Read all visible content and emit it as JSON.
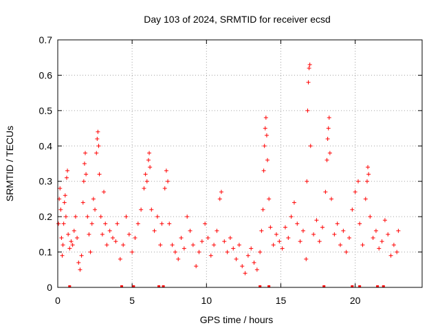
{
  "chart_data": {
    "type": "scatter",
    "title": "Day 103 of 2024, SRMTID for receiver ecsd",
    "xlabel": "GPS time / hours",
    "ylabel": "SRMTID / TECUs",
    "xlim": [
      0,
      24.5
    ],
    "ylim": [
      0,
      0.7
    ],
    "xticks": [
      0,
      5,
      10,
      15,
      20
    ],
    "yticks": [
      0,
      0.1,
      0.2,
      0.3,
      0.4,
      0.5,
      0.6,
      0.7
    ],
    "xtick_labels": [
      "0",
      "5",
      "10",
      "15",
      "20"
    ],
    "ytick_labels": [
      "0",
      "0.1",
      "0.2",
      "0.3",
      "0.4",
      "0.5",
      "0.6",
      "0.7"
    ],
    "grid": true,
    "marker": "+",
    "color": "#ff0000",
    "series": [
      {
        "name": "SRMTID",
        "points": [
          [
            0.05,
            0.18
          ],
          [
            0.1,
            0.25
          ],
          [
            0.15,
            0.28
          ],
          [
            0.2,
            0.22
          ],
          [
            0.25,
            0.14
          ],
          [
            0.3,
            0.09
          ],
          [
            0.35,
            0.12
          ],
          [
            0.4,
            0.18
          ],
          [
            0.45,
            0.24
          ],
          [
            0.5,
            0.26
          ],
          [
            0.55,
            0.2
          ],
          [
            0.6,
            0.31
          ],
          [
            0.65,
            0.33
          ],
          [
            0.7,
            0.15
          ],
          [
            0.8,
            0.11
          ],
          [
            0.9,
            0.13
          ],
          [
            1.0,
            0.12
          ],
          [
            1.1,
            0.16
          ],
          [
            1.2,
            0.2
          ],
          [
            1.3,
            0.14
          ],
          [
            1.4,
            0.07
          ],
          [
            1.5,
            0.05
          ],
          [
            1.6,
            0.09
          ],
          [
            1.7,
            0.24
          ],
          [
            1.75,
            0.3
          ],
          [
            1.8,
            0.35
          ],
          [
            1.85,
            0.38
          ],
          [
            1.9,
            0.32
          ],
          [
            2.0,
            0.2
          ],
          [
            2.1,
            0.15
          ],
          [
            2.2,
            0.1
          ],
          [
            2.3,
            0.18
          ],
          [
            2.4,
            0.25
          ],
          [
            2.5,
            0.22
          ],
          [
            2.6,
            0.38
          ],
          [
            2.65,
            0.42
          ],
          [
            2.7,
            0.44
          ],
          [
            2.75,
            0.4
          ],
          [
            2.8,
            0.32
          ],
          [
            2.9,
            0.2
          ],
          [
            3.0,
            0.15
          ],
          [
            3.1,
            0.27
          ],
          [
            3.2,
            0.18
          ],
          [
            3.3,
            0.12
          ],
          [
            3.5,
            0.16
          ],
          [
            3.7,
            0.14
          ],
          [
            3.9,
            0.13
          ],
          [
            4.0,
            0.18
          ],
          [
            4.2,
            0.08
          ],
          [
            4.4,
            0.12
          ],
          [
            4.6,
            0.2
          ],
          [
            4.8,
            0.15
          ],
          [
            5.0,
            0.1
          ],
          [
            5.2,
            0.14
          ],
          [
            5.4,
            0.18
          ],
          [
            5.6,
            0.22
          ],
          [
            5.8,
            0.28
          ],
          [
            5.9,
            0.32
          ],
          [
            6.0,
            0.3
          ],
          [
            6.1,
            0.36
          ],
          [
            6.15,
            0.38
          ],
          [
            6.2,
            0.34
          ],
          [
            6.3,
            0.22
          ],
          [
            6.5,
            0.16
          ],
          [
            6.7,
            0.2
          ],
          [
            6.9,
            0.12
          ],
          [
            7.0,
            0.18
          ],
          [
            7.2,
            0.28
          ],
          [
            7.3,
            0.33
          ],
          [
            7.4,
            0.3
          ],
          [
            7.5,
            0.18
          ],
          [
            7.7,
            0.12
          ],
          [
            7.9,
            0.1
          ],
          [
            8.1,
            0.08
          ],
          [
            8.3,
            0.14
          ],
          [
            8.5,
            0.11
          ],
          [
            8.7,
            0.2
          ],
          [
            8.9,
            0.16
          ],
          [
            9.1,
            0.12
          ],
          [
            9.3,
            0.06
          ],
          [
            9.5,
            0.1
          ],
          [
            9.7,
            0.13
          ],
          [
            9.9,
            0.18
          ],
          [
            10.1,
            0.14
          ],
          [
            10.3,
            0.09
          ],
          [
            10.5,
            0.12
          ],
          [
            10.7,
            0.16
          ],
          [
            10.9,
            0.25
          ],
          [
            11.0,
            0.27
          ],
          [
            11.2,
            0.13
          ],
          [
            11.4,
            0.1
          ],
          [
            11.6,
            0.14
          ],
          [
            11.8,
            0.11
          ],
          [
            12.0,
            0.08
          ],
          [
            12.2,
            0.12
          ],
          [
            12.4,
            0.06
          ],
          [
            12.6,
            0.04
          ],
          [
            12.8,
            0.09
          ],
          [
            13.0,
            0.11
          ],
          [
            13.2,
            0.07
          ],
          [
            13.4,
            0.05
          ],
          [
            13.6,
            0.1
          ],
          [
            13.7,
            0.16
          ],
          [
            13.8,
            0.22
          ],
          [
            13.85,
            0.33
          ],
          [
            13.9,
            0.4
          ],
          [
            13.95,
            0.45
          ],
          [
            14.0,
            0.48
          ],
          [
            14.05,
            0.43
          ],
          [
            14.1,
            0.36
          ],
          [
            14.2,
            0.25
          ],
          [
            14.3,
            0.17
          ],
          [
            14.5,
            0.12
          ],
          [
            14.7,
            0.15
          ],
          [
            14.9,
            0.13
          ],
          [
            15.1,
            0.11
          ],
          [
            15.3,
            0.17
          ],
          [
            15.5,
            0.14
          ],
          [
            15.7,
            0.2
          ],
          [
            15.9,
            0.24
          ],
          [
            16.1,
            0.18
          ],
          [
            16.3,
            0.13
          ],
          [
            16.5,
            0.16
          ],
          [
            16.7,
            0.08
          ],
          [
            16.75,
            0.3
          ],
          [
            16.8,
            0.5
          ],
          [
            16.85,
            0.58
          ],
          [
            16.9,
            0.62
          ],
          [
            16.95,
            0.63
          ],
          [
            17.0,
            0.4
          ],
          [
            17.2,
            0.15
          ],
          [
            17.4,
            0.19
          ],
          [
            17.6,
            0.13
          ],
          [
            17.8,
            0.17
          ],
          [
            18.0,
            0.27
          ],
          [
            18.1,
            0.36
          ],
          [
            18.15,
            0.42
          ],
          [
            18.2,
            0.45
          ],
          [
            18.25,
            0.48
          ],
          [
            18.3,
            0.38
          ],
          [
            18.4,
            0.25
          ],
          [
            18.6,
            0.15
          ],
          [
            18.8,
            0.18
          ],
          [
            19.0,
            0.12
          ],
          [
            19.2,
            0.16
          ],
          [
            19.4,
            0.1
          ],
          [
            19.6,
            0.14
          ],
          [
            19.8,
            0.22
          ],
          [
            20.0,
            0.27
          ],
          [
            20.2,
            0.3
          ],
          [
            20.3,
            0.18
          ],
          [
            20.5,
            0.12
          ],
          [
            20.7,
            0.25
          ],
          [
            20.8,
            0.3
          ],
          [
            20.85,
            0.34
          ],
          [
            20.9,
            0.32
          ],
          [
            21.0,
            0.2
          ],
          [
            21.2,
            0.14
          ],
          [
            21.4,
            0.16
          ],
          [
            21.6,
            0.11
          ],
          [
            21.8,
            0.13
          ],
          [
            22.0,
            0.19
          ],
          [
            22.2,
            0.15
          ],
          [
            22.4,
            0.09
          ],
          [
            22.6,
            0.12
          ],
          [
            22.8,
            0.1
          ],
          [
            22.9,
            0.16
          ]
        ]
      }
    ],
    "bottom_markers_x": [
      0.8,
      4.3,
      5.1,
      6.8,
      7.1,
      13.6,
      14.2,
      17.9,
      19.8,
      20.3,
      21.5,
      21.9
    ]
  }
}
